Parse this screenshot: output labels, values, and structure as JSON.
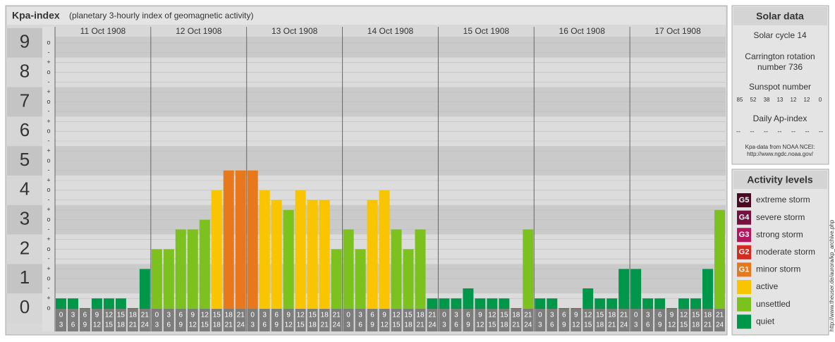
{
  "chart_data": {
    "type": "bar",
    "title": "Kpa-index",
    "subtitle": "(planetary 3-hourly index of geomagnetic activity)",
    "days": [
      "11 Oct 1908",
      "12 Oct 1908",
      "13 Oct 1908",
      "14 Oct 1908",
      "15 Oct 1908",
      "16 Oct 1908",
      "17 Oct 1908"
    ],
    "hours": [
      [
        0,
        3
      ],
      [
        3,
        6
      ],
      [
        6,
        9
      ],
      [
        9,
        12
      ],
      [
        12,
        15
      ],
      [
        15,
        18
      ],
      [
        18,
        21
      ],
      [
        21,
        24
      ]
    ],
    "values": [
      0.33,
      0.33,
      0,
      0.33,
      0.33,
      0.33,
      0,
      1.33,
      2,
      2,
      2.67,
      2.67,
      3,
      4,
      4.67,
      4.67,
      4.67,
      4,
      3.67,
      3.33,
      4,
      3.67,
      3.67,
      2,
      2.67,
      2,
      3.67,
      4,
      2.67,
      2,
      2.67,
      0.33,
      0.33,
      0.33,
      0.67,
      0.33,
      0.33,
      0.33,
      0,
      2.67,
      0.33,
      0.33,
      0,
      0,
      0.67,
      0.33,
      0.33,
      1.33,
      1.33,
      0.33,
      0.33,
      0,
      0.33,
      0.33,
      1.33,
      3.33
    ],
    "colors": [
      "#00974a",
      "#00974a",
      "#00974a",
      "#00974a",
      "#00974a",
      "#00974a",
      "#00974a",
      "#00974a",
      "#7dc11f",
      "#7dc11f",
      "#7dc11f",
      "#7dc11f",
      "#7dc11f",
      "#f9c400",
      "#e8781c",
      "#e8781c",
      "#e8781c",
      "#f9c400",
      "#f9c400",
      "#7dc11f",
      "#f9c400",
      "#f9c400",
      "#f9c400",
      "#7dc11f",
      "#7dc11f",
      "#7dc11f",
      "#f9c400",
      "#f9c400",
      "#7dc11f",
      "#7dc11f",
      "#7dc11f",
      "#00974a",
      "#00974a",
      "#00974a",
      "#00974a",
      "#00974a",
      "#00974a",
      "#00974a",
      "#00974a",
      "#7dc11f",
      "#00974a",
      "#00974a",
      "#00974a",
      "#00974a",
      "#00974a",
      "#00974a",
      "#00974a",
      "#00974a",
      "#00974a",
      "#00974a",
      "#00974a",
      "#00974a",
      "#00974a",
      "#00974a",
      "#00974a",
      "#7dc11f"
    ],
    "ylim": [
      0,
      9
    ],
    "yticks": [
      0,
      1,
      2,
      3,
      4,
      5,
      6,
      7,
      8,
      9
    ],
    "yticks_minor": [
      {
        "value": 0,
        "label": "o"
      },
      {
        "value": 0.33,
        "label": "+"
      },
      {
        "value": 0.67,
        "label": "-"
      },
      {
        "value": 1,
        "label": "o"
      },
      {
        "value": 1.33,
        "label": "+"
      },
      {
        "value": 1.67,
        "label": "-"
      },
      {
        "value": 2,
        "label": "o"
      },
      {
        "value": 2.33,
        "label": "+"
      },
      {
        "value": 2.67,
        "label": "-"
      },
      {
        "value": 3,
        "label": "o"
      },
      {
        "value": 3.33,
        "label": "+"
      },
      {
        "value": 3.67,
        "label": "-"
      },
      {
        "value": 4,
        "label": "o"
      },
      {
        "value": 4.33,
        "label": "+"
      },
      {
        "value": 4.67,
        "label": "-"
      },
      {
        "value": 5,
        "label": "o"
      },
      {
        "value": 5.33,
        "label": "+"
      },
      {
        "value": 5.67,
        "label": "-"
      },
      {
        "value": 6,
        "label": "o"
      },
      {
        "value": 6.33,
        "label": "+"
      },
      {
        "value": 6.67,
        "label": "-"
      },
      {
        "value": 7,
        "label": "o"
      },
      {
        "value": 7.33,
        "label": "+"
      },
      {
        "value": 7.67,
        "label": "-"
      },
      {
        "value": 8,
        "label": "o"
      },
      {
        "value": 8.33,
        "label": "+"
      },
      {
        "value": 8.67,
        "label": "-"
      },
      {
        "value": 9,
        "label": "o"
      }
    ],
    "grid": true
  },
  "solar_data": {
    "title": "Solar data",
    "cycle": "Solar cycle 14",
    "rotation": [
      "Carrington rotation",
      "number 736"
    ],
    "sunspot_title": "Sunspot number",
    "sunspots": [
      85,
      52,
      38,
      13,
      12,
      12,
      0
    ],
    "ap_title": "Daily Ap-index",
    "ap": [
      "--",
      "--",
      "--",
      "--",
      "--",
      "--",
      "--"
    ],
    "source": [
      "Kpa-data from NOAA NCEI:",
      "http://www.ngdc.noaa.gov/"
    ]
  },
  "activity_levels": {
    "title": "Activity levels",
    "items": [
      {
        "badge": "G5",
        "label": "extreme storm",
        "color": "#4a0a24"
      },
      {
        "badge": "G4",
        "label": "severe storm",
        "color": "#760e3f"
      },
      {
        "badge": "G3",
        "label": "strong storm",
        "color": "#b3155f"
      },
      {
        "badge": "G2",
        "label": "moderate storm",
        "color": "#d42a20"
      },
      {
        "badge": "G1",
        "label": "minor storm",
        "color": "#e8781c"
      },
      {
        "label": "active",
        "color": "#f9c400"
      },
      {
        "label": "unsettled",
        "color": "#7dc11f"
      },
      {
        "label": "quiet",
        "color": "#00974a"
      }
    ]
  },
  "credit": "http://www.theuser.de/aurora/kp_archive.php"
}
